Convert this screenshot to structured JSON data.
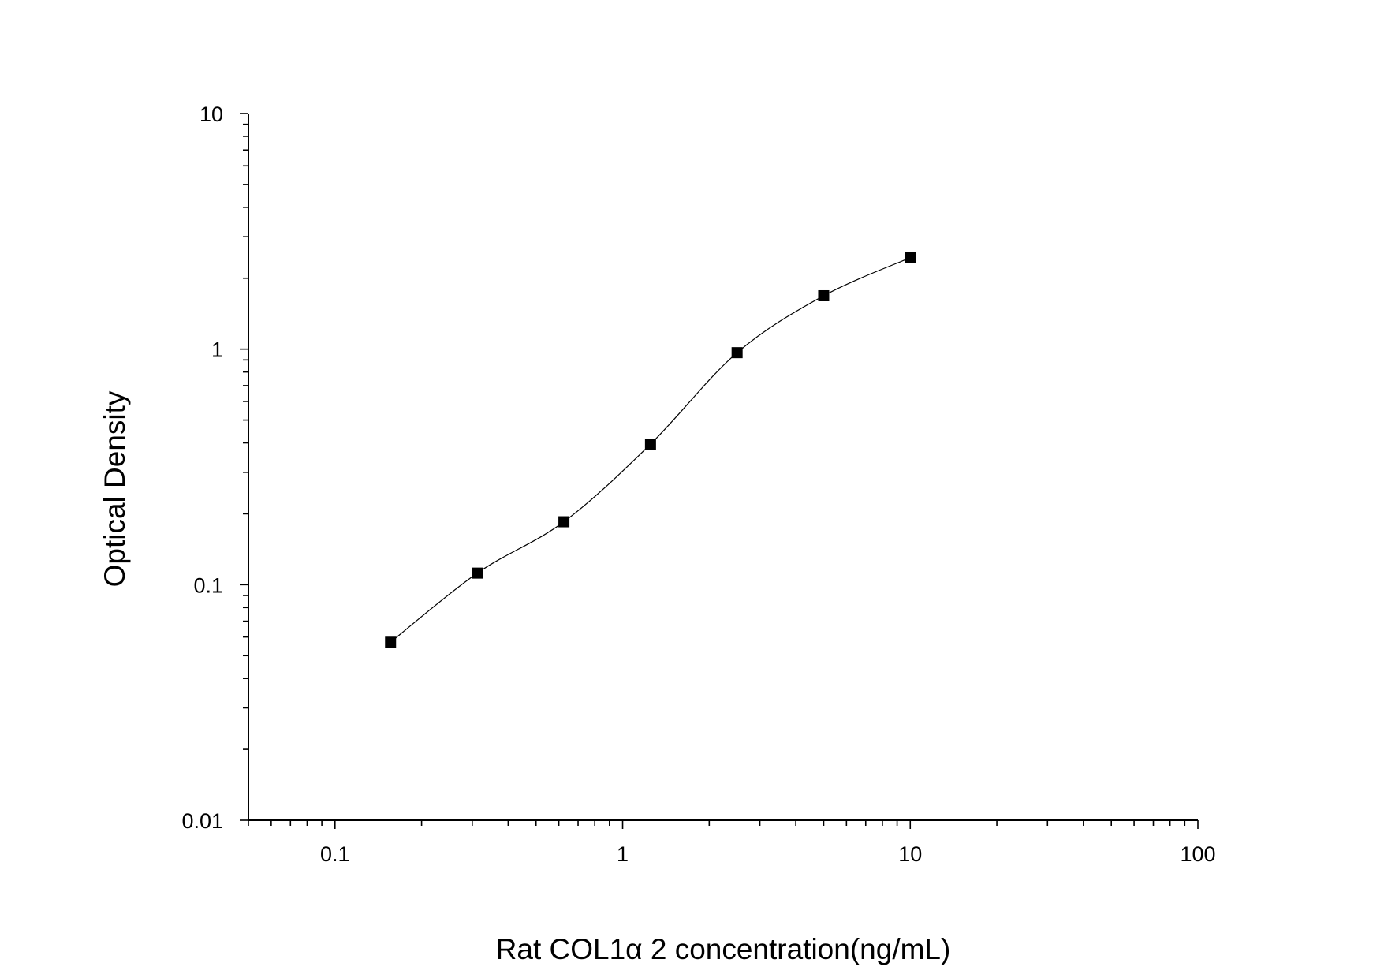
{
  "chart_data": {
    "type": "scatter",
    "title": "",
    "xlabel": "Rat COL1α 2 concentration(ng/mL)",
    "ylabel": "Optical Density",
    "xscale": "log",
    "yscale": "log",
    "xlim": [
      0.05,
      100
    ],
    "ylim": [
      0.01,
      10
    ],
    "xticks": [
      {
        "v": 0.1,
        "label": "0.1"
      },
      {
        "v": 1,
        "label": "1"
      },
      {
        "v": 10,
        "label": "10"
      },
      {
        "v": 100,
        "label": "100"
      }
    ],
    "yticks": [
      {
        "v": 0.01,
        "label": "0.01"
      },
      {
        "v": 0.1,
        "label": "0.1"
      },
      {
        "v": 1,
        "label": "1"
      },
      {
        "v": 10,
        "label": "10"
      }
    ],
    "grid": false,
    "legend": "none",
    "marker": "square",
    "fit_line": "smooth curve",
    "colors": {
      "marker": "#000000",
      "line": "#000000"
    },
    "series": [
      {
        "x": [
          0.156,
          0.3125,
          0.625,
          1.25,
          2.5,
          5,
          10
        ],
        "y": [
          0.057,
          0.112,
          0.185,
          0.395,
          0.966,
          1.685,
          2.445
        ]
      }
    ]
  }
}
